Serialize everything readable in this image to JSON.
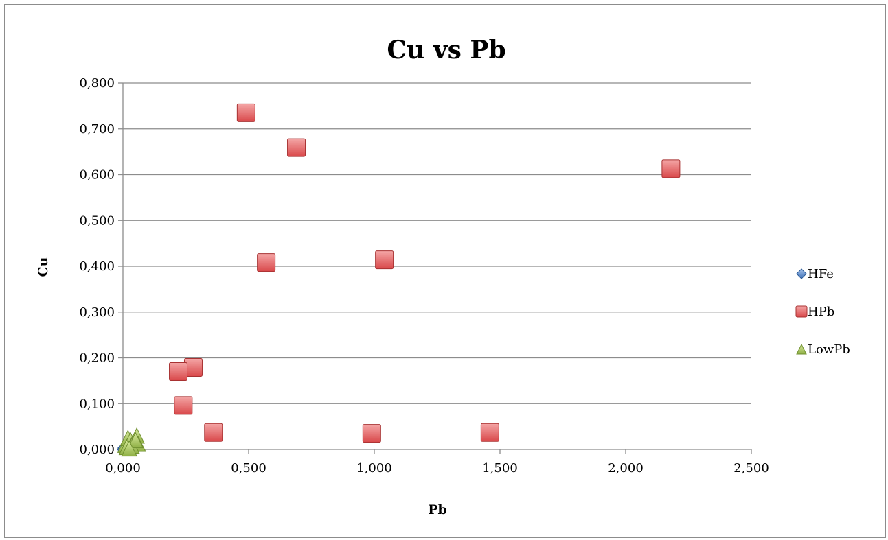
{
  "chart_data": {
    "type": "scatter",
    "title": "Cu vs Pb",
    "xlabel": "Pb",
    "ylabel": "Cu",
    "xlim": [
      0,
      2.5
    ],
    "ylim": [
      0,
      0.8
    ],
    "x_ticks": [
      0,
      0.5,
      1.0,
      1.5,
      2.0,
      2.5
    ],
    "x_tick_labels": [
      "0,000",
      "0,500",
      "1,000",
      "1,500",
      "2,000",
      "2,500"
    ],
    "y_ticks": [
      0,
      0.1,
      0.2,
      0.3,
      0.4,
      0.5,
      0.6,
      0.7,
      0.8
    ],
    "y_tick_labels": [
      "0,000",
      "0,100",
      "0,200",
      "0,300",
      "0,400",
      "0,500",
      "0,600",
      "0,700",
      "0,800"
    ],
    "grid": "horizontal",
    "legend_position": "right",
    "series": [
      {
        "name": "HFe",
        "marker": "diamond",
        "color": "#4f81bd",
        "points": [
          [
            0.0,
            0.0
          ],
          [
            0.003,
            0.001
          ],
          [
            0.005,
            0.002
          ],
          [
            0.002,
            0.003
          ],
          [
            0.006,
            0.0
          ],
          [
            0.004,
            0.004
          ]
        ]
      },
      {
        "name": "HPb",
        "marker": "square",
        "color": "#e05555",
        "points": [
          [
            0.49,
            0.735
          ],
          [
            0.69,
            0.659
          ],
          [
            2.18,
            0.613
          ],
          [
            0.57,
            0.408
          ],
          [
            1.04,
            0.414
          ],
          [
            0.28,
            0.179
          ],
          [
            0.22,
            0.17
          ],
          [
            0.24,
            0.096
          ],
          [
            0.36,
            0.037
          ],
          [
            0.99,
            0.035
          ],
          [
            1.46,
            0.037
          ]
        ]
      },
      {
        "name": "LowPb",
        "marker": "triangle",
        "color": "#9bbb59",
        "points": [
          [
            0.01,
            0.01
          ],
          [
            0.02,
            0.025
          ],
          [
            0.03,
            0.02
          ],
          [
            0.04,
            0.015
          ],
          [
            0.055,
            0.03
          ],
          [
            0.06,
            0.012
          ],
          [
            0.015,
            0.005
          ],
          [
            0.035,
            0.008
          ],
          [
            0.05,
            0.02
          ],
          [
            0.025,
            0.002
          ]
        ]
      }
    ]
  }
}
